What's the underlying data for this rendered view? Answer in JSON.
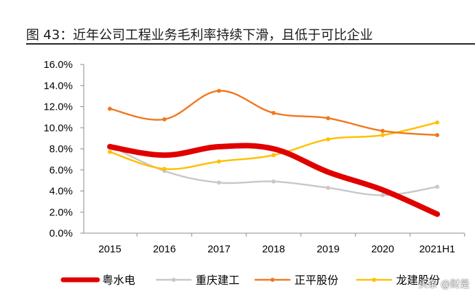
{
  "caption": "图 43：近年公司工程业务毛利率持续下滑，且低于可比企业",
  "watermark": "头条 @财是",
  "chart_data": {
    "type": "line",
    "categories": [
      "2015",
      "2016",
      "2017",
      "2018",
      "2019",
      "2020",
      "2021H1"
    ],
    "y_ticks": [
      "0.0%",
      "2.0%",
      "4.0%",
      "6.0%",
      "8.0%",
      "10.0%",
      "12.0%",
      "14.0%",
      "16.0%"
    ],
    "ylim": [
      0,
      16
    ],
    "grid": false,
    "legend_position": "bottom",
    "series": [
      {
        "name": "粤水电",
        "color": "#e00000",
        "width": 8,
        "values": [
          8.2,
          7.4,
          8.2,
          8.0,
          5.8,
          4.1,
          1.8
        ]
      },
      {
        "name": "重庆建工",
        "color": "#c8c8c8",
        "width": 2.5,
        "values": [
          8.3,
          5.9,
          4.8,
          4.9,
          4.3,
          3.6,
          4.4
        ]
      },
      {
        "name": "正平股份",
        "color": "#f07820",
        "width": 2.5,
        "values": [
          11.8,
          10.8,
          13.5,
          11.4,
          10.9,
          9.7,
          9.3
        ]
      },
      {
        "name": "龙建股份",
        "color": "#ffc000",
        "width": 2.5,
        "values": [
          7.7,
          6.1,
          6.8,
          7.4,
          8.9,
          9.3,
          10.5
        ]
      }
    ]
  }
}
